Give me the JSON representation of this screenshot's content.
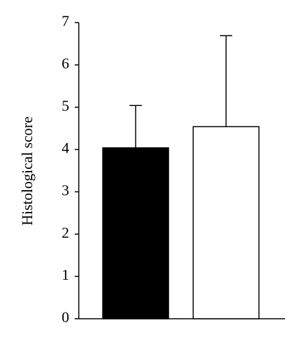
{
  "chart_data": {
    "type": "bar",
    "y_label": "Histological score",
    "categories": [
      null,
      null
    ],
    "values": [
      4.04,
      4.54
    ],
    "errors": [
      1.0,
      2.15
    ],
    "colors": [
      "#000000",
      "#ffffff"
    ],
    "ylim": [
      0,
      7
    ],
    "yticks": [
      0,
      1,
      2,
      3,
      4,
      5,
      6,
      7
    ],
    "grid": false
  }
}
